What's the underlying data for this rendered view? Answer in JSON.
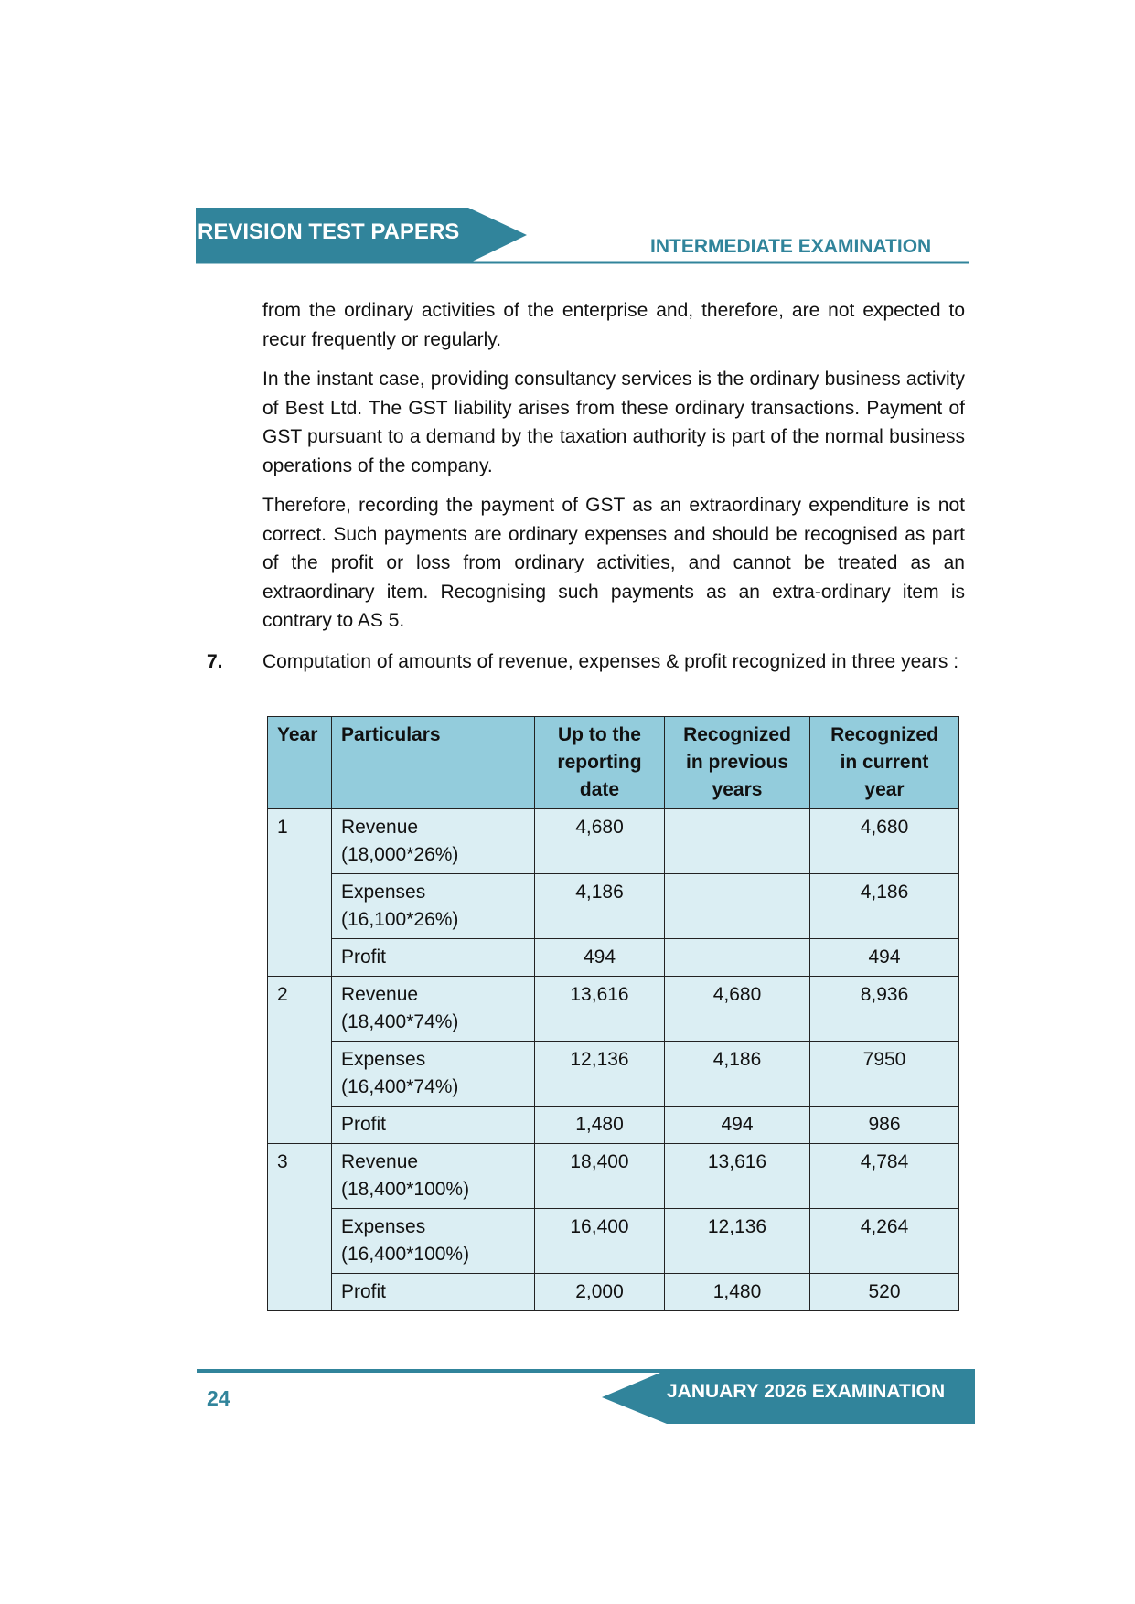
{
  "header": {
    "left": "REVISION TEST PAPERS",
    "right": "INTERMEDIATE EXAMINATION"
  },
  "paragraphs": [
    "from the ordinary activities of the enterprise and, therefore, are not expected to recur frequently or regularly.",
    "In the instant case, providing consultancy services is the ordinary business activity of Best Ltd. The GST liability arises from these ordinary transactions. Payment of GST pursuant to a demand by the taxation authority is part of the normal business operations of the company.",
    "Therefore, recording the payment of GST as an extraordinary expenditure is not correct. Such payments are ordinary expenses and should be recognised as part of the profit or loss from ordinary activities, and cannot be treated as an extraordinary item. Recognising such payments as an extra-ordinary item is contrary to AS 5."
  ],
  "item": {
    "number": "7.",
    "text": "Computation of amounts of revenue, expenses & profit recognized in three years :"
  },
  "table": {
    "headers": [
      "Year",
      "Particulars",
      "Up to the reporting date",
      "Recognized in previous years",
      "Recognized in current year"
    ],
    "groups": [
      {
        "year": "1",
        "rows": [
          {
            "particulars": [
              "Revenue",
              "(18,000*26%)"
            ],
            "cells": [
              "4,680",
              null,
              "4,680"
            ]
          },
          {
            "particulars": [
              "Expenses",
              "(16,100*26%)"
            ],
            "cells": [
              "4,186",
              null,
              "4,186"
            ]
          },
          {
            "particulars": [
              "Profit"
            ],
            "cells": [
              "494",
              null,
              "494"
            ]
          }
        ]
      },
      {
        "year": "2",
        "rows": [
          {
            "particulars": [
              "Revenue",
              "(18,400*74%)"
            ],
            "cells": [
              "13,616",
              "4,680",
              "8,936"
            ]
          },
          {
            "particulars": [
              "Expenses",
              "(16,400*74%)"
            ],
            "cells": [
              "12,136",
              "4,186",
              "7950"
            ]
          },
          {
            "particulars": [
              "Profit"
            ],
            "cells": [
              "1,480",
              "494",
              "986"
            ]
          }
        ]
      },
      {
        "year": "3",
        "rows": [
          {
            "particulars": [
              "Revenue",
              "(18,400*100%)"
            ],
            "cells": [
              "18,400",
              "13,616",
              "4,784"
            ]
          },
          {
            "particulars": [
              "Expenses",
              "(16,400*100%)"
            ],
            "cells": [
              "16,400",
              "12,136",
              "4,264"
            ]
          },
          {
            "particulars": [
              "Profit"
            ],
            "cells": [
              "2,000",
              "1,480",
              "520"
            ]
          }
        ]
      }
    ]
  },
  "footer": {
    "page": "24",
    "right": "JANUARY 2026 EXAMINATION"
  }
}
